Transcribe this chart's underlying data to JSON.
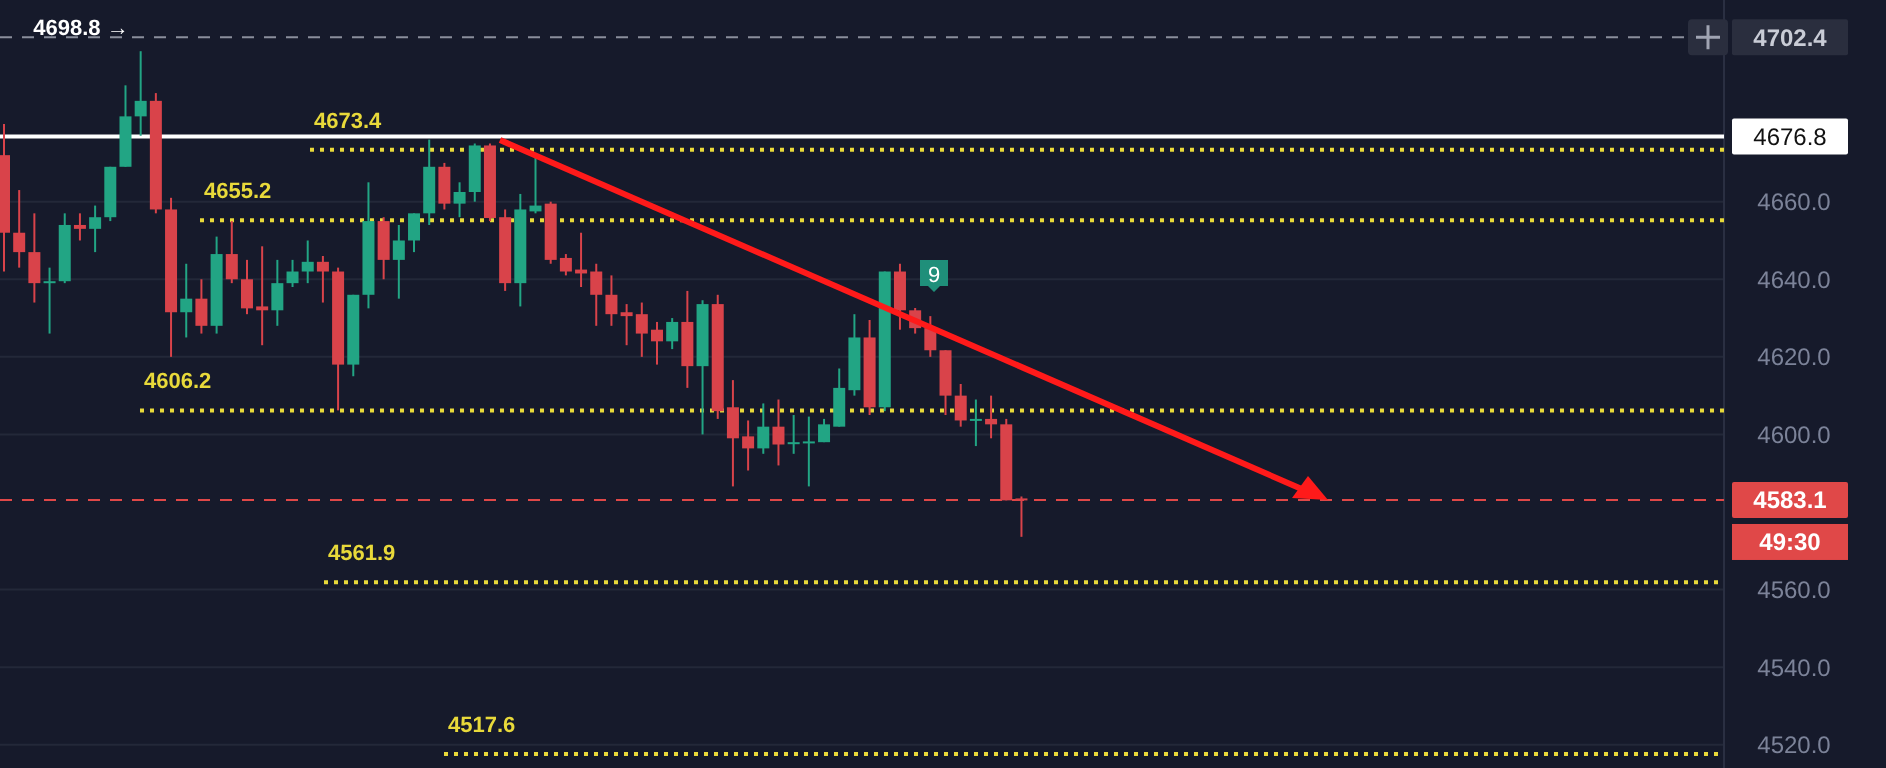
{
  "chart_data": {
    "type": "candlestick",
    "categories": [
      null,
      null,
      null,
      null,
      null,
      null,
      null,
      null,
      null,
      null,
      null,
      null,
      null,
      null,
      null,
      null,
      null,
      null,
      null,
      null,
      null,
      null,
      null,
      null,
      null,
      null,
      null,
      null,
      null,
      null,
      null,
      null,
      null,
      null,
      null,
      null,
      null,
      null,
      null,
      null,
      null,
      null,
      null,
      null,
      null,
      null,
      null,
      null,
      null,
      null,
      null,
      null,
      null,
      null,
      null,
      null,
      null,
      null,
      null,
      null,
      null,
      null,
      null,
      null,
      null,
      null,
      null,
      null,
      null,
      null,
      null,
      null,
      null,
      null,
      null,
      null,
      null,
      null,
      null,
      null,
      null,
      null,
      null,
      null,
      null,
      null,
      null,
      null,
      null,
      null,
      null,
      null,
      null,
      null,
      null,
      null,
      null,
      null,
      null,
      null,
      null,
      null,
      null,
      null,
      null,
      null,
      null,
      null,
      null,
      null,
      null,
      null,
      null,
      null
    ],
    "ohlc": [
      [
        4672,
        4680,
        4642,
        4652
      ],
      [
        4652,
        4663,
        4643,
        4647
      ],
      [
        4647,
        4657,
        4634,
        4639
      ],
      [
        4639,
        4643,
        4626,
        4639.5
      ],
      [
        4639.5,
        4657,
        4639,
        4654
      ],
      [
        4654,
        4657,
        4650,
        4653
      ],
      [
        4653,
        4659,
        4647,
        4656
      ],
      [
        4656,
        4669,
        4655,
        4669
      ],
      [
        4669,
        4690,
        4669,
        4682
      ],
      [
        4682,
        4698.8,
        4677,
        4686
      ],
      [
        4686,
        4688,
        4657,
        4658
      ],
      [
        4658,
        4661,
        4620,
        4631.5
      ],
      [
        4631.5,
        4644,
        4625,
        4635
      ],
      [
        4635,
        4640,
        4626,
        4628
      ],
      [
        4628,
        4651,
        4626,
        4646.5
      ],
      [
        4646.5,
        4655,
        4639,
        4640
      ],
      [
        4640,
        4645,
        4631,
        4632.5
      ],
      [
        4633,
        4648.5,
        4623,
        4632
      ],
      [
        4632,
        4645,
        4628,
        4639
      ],
      [
        4639,
        4645,
        4638,
        4642
      ],
      [
        4642,
        4650,
        4639,
        4644.5
      ],
      [
        4644.5,
        4646,
        4634,
        4642
      ],
      [
        4642,
        4643,
        4606.2,
        4618
      ],
      [
        4618,
        4636,
        4615,
        4636
      ],
      [
        4636,
        4665,
        4632.5,
        4655
      ],
      [
        4655,
        4656,
        4640,
        4645
      ],
      [
        4645,
        4654,
        4635,
        4650
      ],
      [
        4650,
        4657,
        4647,
        4657
      ],
      [
        4657,
        4676,
        4654,
        4669
      ],
      [
        4669,
        4670,
        4658,
        4659.5
      ],
      [
        4659.5,
        4665,
        4656,
        4662.5
      ],
      [
        4662.5,
        4675,
        4660,
        4674.5
      ],
      [
        4674.5,
        4675,
        4655,
        4655.8
      ],
      [
        4656,
        4658,
        4637,
        4639
      ],
      [
        4639,
        4662,
        4633,
        4658
      ],
      [
        4657.5,
        4672,
        4657,
        4659
      ],
      [
        4659.5,
        4660,
        4644,
        4645
      ],
      [
        4645.5,
        4646.5,
        4641,
        4642
      ],
      [
        4642.5,
        4652,
        4638,
        4641.5
      ],
      [
        4642,
        4644,
        4628,
        4636
      ],
      [
        4636,
        4641,
        4628,
        4631
      ],
      [
        4631.5,
        4633.6,
        4623,
        4630.5
      ],
      [
        4631,
        4634,
        4620,
        4626
      ],
      [
        4627,
        4629,
        4618,
        4624
      ],
      [
        4624,
        4630,
        4622,
        4629
      ],
      [
        4629,
        4637,
        4612,
        4617.6
      ],
      [
        4617.6,
        4634.6,
        4600,
        4633.6
      ],
      [
        4633.6,
        4636,
        4604,
        4606
      ],
      [
        4607,
        4614,
        4586.6,
        4599
      ],
      [
        4599.5,
        4603.6,
        4590.7,
        4596.4
      ],
      [
        4596.4,
        4608,
        4595,
        4602
      ],
      [
        4602,
        4609,
        4592,
        4597.4
      ],
      [
        4597.7,
        4605,
        4595,
        4598
      ],
      [
        4598,
        4604.6,
        4586.6,
        4598.2
      ],
      [
        4598,
        4604,
        4598,
        4602.6
      ],
      [
        4602,
        4617,
        4602,
        4612
      ],
      [
        4611.4,
        4631,
        4610,
        4625
      ],
      [
        4625,
        4629.5,
        4605,
        4607
      ],
      [
        4607,
        4642,
        4606,
        4642
      ],
      [
        4642,
        4644,
        4627,
        4632
      ],
      [
        4632,
        4632.6,
        4626,
        4627.4
      ],
      [
        4627.4,
        4630.5,
        4620,
        4621.7
      ],
      [
        4621.7,
        4621.7,
        4605,
        4610
      ],
      [
        4610,
        4613,
        4602,
        4603.6
      ],
      [
        4603.6,
        4609,
        4597,
        4604
      ],
      [
        4604,
        4610,
        4599,
        4602.6
      ],
      [
        4602.6,
        4604,
        4583,
        4583
      ],
      [
        4583.5,
        4584,
        4573.6,
        4583.1
      ],
      null,
      null,
      null,
      null,
      null,
      null,
      null,
      null,
      null,
      null,
      null,
      null,
      null,
      null,
      null,
      null,
      null,
      null,
      null,
      null,
      null,
      null,
      null,
      null,
      null,
      null,
      null,
      null,
      null,
      null,
      null,
      null,
      null,
      null,
      null,
      null,
      null,
      null,
      null,
      null,
      null,
      null,
      null,
      null,
      null,
      null
    ],
    "ylim": [
      4514,
      4712
    ],
    "yticks": [
      {
        "value": 4520,
        "label": "4520.0"
      },
      {
        "value": 4540,
        "label": "4540.0"
      },
      {
        "value": 4560,
        "label": "4560.0"
      },
      {
        "value": 4600,
        "label": "4600.0"
      },
      {
        "value": 4620,
        "label": "4620.0"
      },
      {
        "value": 4640,
        "label": "4640.0"
      },
      {
        "value": 4660,
        "label": "4660.0"
      }
    ],
    "tick_labels": "y",
    "grid": "y",
    "ref_lines": [
      {
        "axis": "y",
        "value": 4702.4,
        "label": "4702.4",
        "color": "#8a8e9c",
        "line_style": "dashed"
      },
      {
        "axis": "y",
        "value": 4676.8,
        "label": "4676.8",
        "color": "#ffffff",
        "line_style": "solid"
      },
      {
        "axis": "y",
        "value": 4673.4,
        "label": "4673.4",
        "color": "#e8d93a",
        "line_style": "dotted"
      },
      {
        "axis": "y",
        "value": 4655.2,
        "label": "4655.2",
        "color": "#e8d93a",
        "line_style": "dotted"
      },
      {
        "axis": "y",
        "value": 4606.2,
        "label": "4606.2",
        "color": "#e8d93a",
        "line_style": "dotted"
      },
      {
        "axis": "y",
        "value": 4561.9,
        "label": "4561.9",
        "color": "#e8d93a",
        "line_style": "dotted"
      },
      {
        "axis": "y",
        "value": 4517.6,
        "label": "4517.6",
        "color": "#e8d93a",
        "line_style": "dotted"
      },
      {
        "axis": "y",
        "value": 4583.1,
        "label": "4583.1",
        "color": "#e04848",
        "line_style": "dashed"
      }
    ],
    "annotations": [
      "4698.8 →",
      "9",
      "49:30"
    ]
  }
}
